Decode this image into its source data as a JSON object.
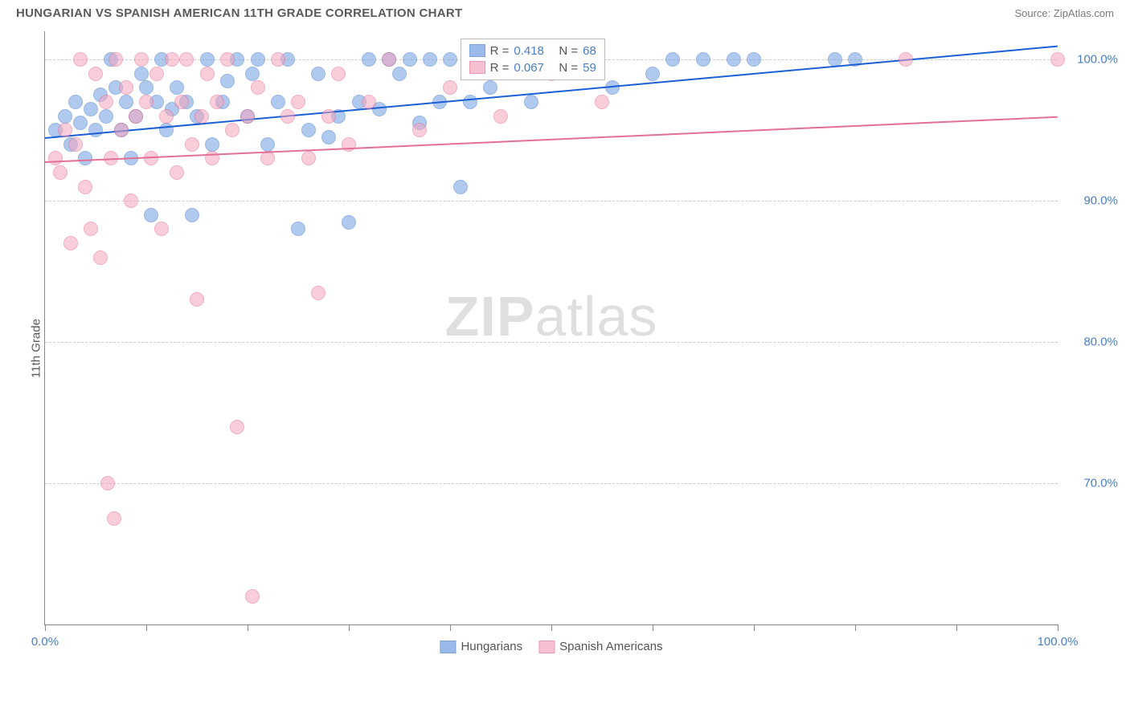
{
  "header": {
    "title": "HUNGARIAN VS SPANISH AMERICAN 11TH GRADE CORRELATION CHART",
    "source_label": "Source: ",
    "source_name": "ZipAtlas.com"
  },
  "ylabel": "11th Grade",
  "watermark": {
    "part1": "ZIP",
    "part2": "atlas"
  },
  "chart": {
    "type": "scatter",
    "xlim": [
      0,
      100
    ],
    "ylim": [
      60,
      102
    ],
    "yticks": [
      70.0,
      80.0,
      90.0,
      100.0
    ],
    "ytick_labels": [
      "70.0%",
      "80.0%",
      "90.0%",
      "100.0%"
    ],
    "xticks": [
      0,
      10,
      20,
      30,
      40,
      50,
      60,
      70,
      80,
      90,
      100
    ],
    "xtick_labels": {
      "0": "0.0%",
      "100": "100.0%"
    },
    "background_color": "#ffffff",
    "grid_color": "#cccccc",
    "axis_color": "#888888",
    "marker_radius": 9,
    "marker_opacity": 0.55,
    "series": [
      {
        "name": "Hungarians",
        "color": "#6f9de3",
        "stroke": "#4a7ec7",
        "R": "0.418",
        "N": "68",
        "trend": {
          "x1": 0,
          "y1": 94.5,
          "x2": 100,
          "y2": 101.0,
          "color": "#1b5fd6",
          "width": 2
        },
        "points": [
          [
            1,
            95
          ],
          [
            2,
            96
          ],
          [
            2.5,
            94
          ],
          [
            3,
            97
          ],
          [
            3.5,
            95.5
          ],
          [
            4,
            93
          ],
          [
            4.5,
            96.5
          ],
          [
            5,
            95
          ],
          [
            5.5,
            97.5
          ],
          [
            6,
            96
          ],
          [
            6.5,
            100
          ],
          [
            7,
            98
          ],
          [
            7.5,
            95
          ],
          [
            8,
            97
          ],
          [
            8.5,
            93
          ],
          [
            9,
            96
          ],
          [
            9.5,
            99
          ],
          [
            10,
            98
          ],
          [
            10.5,
            89
          ],
          [
            11,
            97
          ],
          [
            11.5,
            100
          ],
          [
            12,
            95
          ],
          [
            12.5,
            96.5
          ],
          [
            13,
            98
          ],
          [
            14,
            97
          ],
          [
            14.5,
            89
          ],
          [
            15,
            96
          ],
          [
            16,
            100
          ],
          [
            16.5,
            94
          ],
          [
            17.5,
            97
          ],
          [
            18,
            98.5
          ],
          [
            19,
            100
          ],
          [
            20,
            96
          ],
          [
            20.5,
            99
          ],
          [
            21,
            100
          ],
          [
            22,
            94
          ],
          [
            23,
            97
          ],
          [
            24,
            100
          ],
          [
            25,
            88
          ],
          [
            26,
            95
          ],
          [
            27,
            99
          ],
          [
            28,
            94.5
          ],
          [
            29,
            96
          ],
          [
            30,
            88.5
          ],
          [
            31,
            97
          ],
          [
            32,
            100
          ],
          [
            33,
            96.5
          ],
          [
            34,
            100
          ],
          [
            35,
            99
          ],
          [
            36,
            100
          ],
          [
            37,
            95.5
          ],
          [
            38,
            100
          ],
          [
            39,
            97
          ],
          [
            40,
            100
          ],
          [
            41,
            91
          ],
          [
            42,
            97
          ],
          [
            44,
            98
          ],
          [
            46,
            100
          ],
          [
            48,
            97
          ],
          [
            50,
            100
          ],
          [
            56,
            98
          ],
          [
            60,
            99
          ],
          [
            62,
            100
          ],
          [
            65,
            100
          ],
          [
            68,
            100
          ],
          [
            70,
            100
          ],
          [
            78,
            100
          ],
          [
            80,
            100
          ]
        ]
      },
      {
        "name": "Spanish Americans",
        "color": "#f5a6bd",
        "stroke": "#e56f94",
        "R": "0.067",
        "N": "59",
        "trend": {
          "x1": 0,
          "y1": 92.8,
          "x2": 100,
          "y2": 96.0,
          "color": "#e56f94",
          "width": 2
        },
        "points": [
          [
            1,
            93
          ],
          [
            1.5,
            92
          ],
          [
            2,
            95
          ],
          [
            2.5,
            87
          ],
          [
            3,
            94
          ],
          [
            3.5,
            100
          ],
          [
            4,
            91
          ],
          [
            4.5,
            88
          ],
          [
            5,
            99
          ],
          [
            5.5,
            86
          ],
          [
            6,
            97
          ],
          [
            6.2,
            70
          ],
          [
            6.5,
            93
          ],
          [
            6.8,
            67.5
          ],
          [
            7,
            100
          ],
          [
            7.5,
            95
          ],
          [
            8,
            98
          ],
          [
            8.5,
            90
          ],
          [
            9,
            96
          ],
          [
            9.5,
            100
          ],
          [
            10,
            97
          ],
          [
            10.5,
            93
          ],
          [
            11,
            99
          ],
          [
            11.5,
            88
          ],
          [
            12,
            96
          ],
          [
            12.5,
            100
          ],
          [
            13,
            92
          ],
          [
            13.5,
            97
          ],
          [
            14,
            100
          ],
          [
            14.5,
            94
          ],
          [
            15,
            83
          ],
          [
            15.5,
            96
          ],
          [
            16,
            99
          ],
          [
            16.5,
            93
          ],
          [
            17,
            97
          ],
          [
            18,
            100
          ],
          [
            18.5,
            95
          ],
          [
            19,
            74
          ],
          [
            20,
            96
          ],
          [
            20.5,
            62
          ],
          [
            21,
            98
          ],
          [
            22,
            93
          ],
          [
            23,
            100
          ],
          [
            24,
            96
          ],
          [
            25,
            97
          ],
          [
            26,
            93
          ],
          [
            27,
            83.5
          ],
          [
            28,
            96
          ],
          [
            29,
            99
          ],
          [
            30,
            94
          ],
          [
            32,
            97
          ],
          [
            34,
            100
          ],
          [
            37,
            95
          ],
          [
            40,
            98
          ],
          [
            45,
            96
          ],
          [
            50,
            99
          ],
          [
            55,
            97
          ],
          [
            85,
            100
          ],
          [
            100,
            100
          ]
        ]
      }
    ]
  },
  "stats_legend": {
    "r_label": "R =",
    "n_label": "N ="
  },
  "bottom_legend": {
    "items": [
      "Hungarians",
      "Spanish Americans"
    ]
  }
}
